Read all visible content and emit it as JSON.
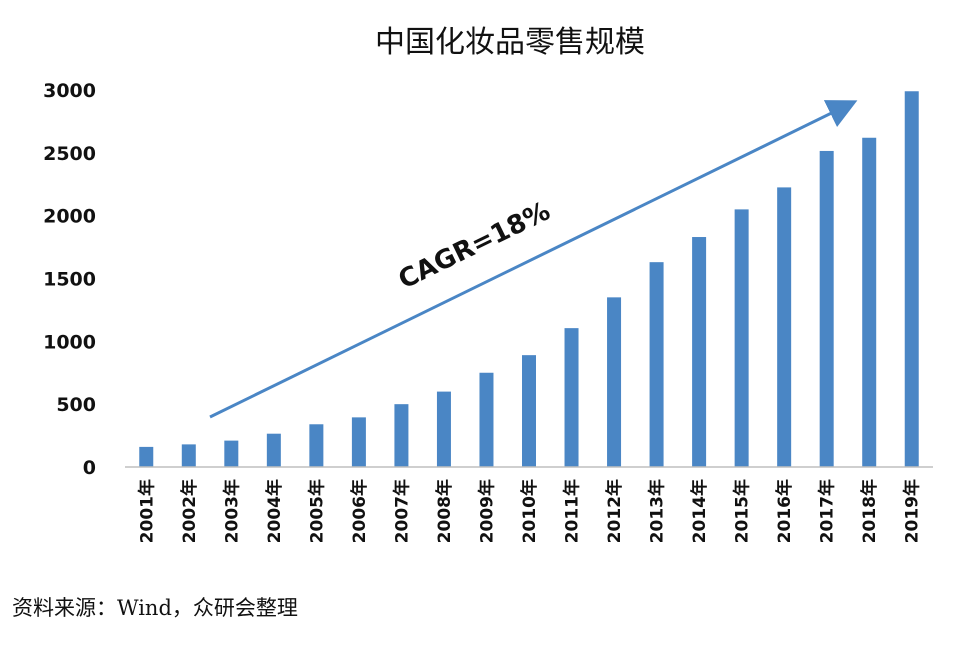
{
  "chart_data": {
    "type": "bar",
    "title": "中国化妆品零售规模",
    "xlabel": "",
    "ylabel": "",
    "categories": [
      "2001年",
      "2002年",
      "2003年",
      "2004年",
      "2005年",
      "2006年",
      "2007年",
      "2008年",
      "2009年",
      "2010年",
      "2011年",
      "2012年",
      "2013年",
      "2014年",
      "2015年",
      "2016年",
      "2017年",
      "2018年",
      "2019年"
    ],
    "values": [
      160,
      180,
      210,
      265,
      340,
      395,
      500,
      600,
      750,
      890,
      1105,
      1350,
      1630,
      1830,
      2050,
      2225,
      2515,
      2620,
      2990
    ],
    "ylim": [
      0,
      3000
    ],
    "yticks": [
      "0",
      "500",
      "1000",
      "1500",
      "2000",
      "2500",
      "3000"
    ],
    "bar_color": "#4A86C5",
    "grid": false,
    "legend": "none",
    "annotation": {
      "text": "CAGR=18%",
      "arrow_color": "#4A86C5"
    }
  },
  "source": "资料来源：Wind，众研会整理"
}
